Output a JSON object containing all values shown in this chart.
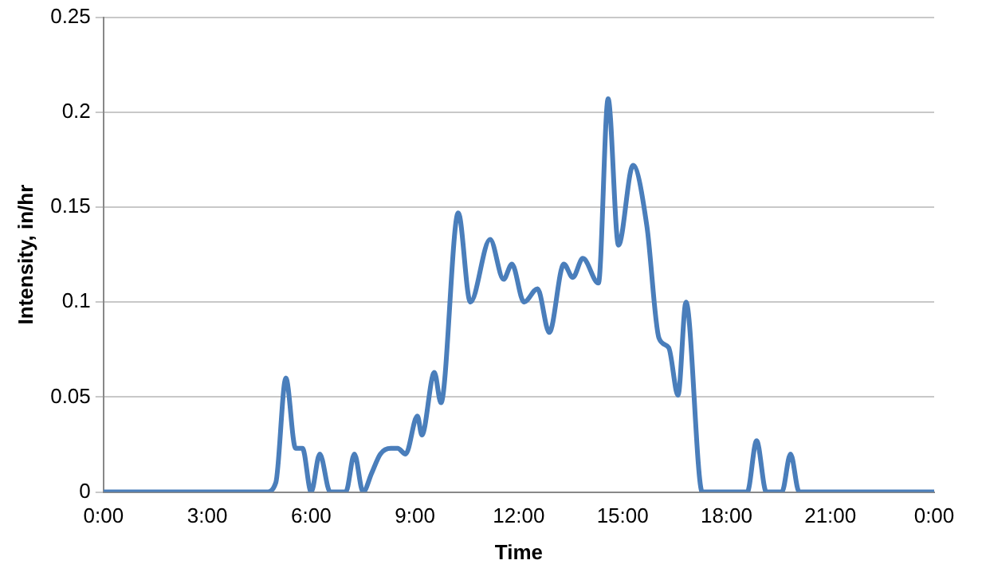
{
  "chart_data": {
    "type": "line",
    "xlabel": "Time",
    "ylabel": "Intensity, in/hr",
    "x": [
      0,
      4.7,
      4.98,
      5.27,
      5.55,
      5.75,
      6.0,
      6.25,
      6.55,
      7.0,
      7.25,
      7.5,
      7.75,
      8.0,
      8.3,
      8.5,
      8.73,
      9.07,
      9.2,
      9.56,
      9.75,
      10.25,
      10.6,
      11.17,
      11.56,
      11.8,
      12.15,
      12.54,
      12.88,
      13.3,
      13.56,
      13.85,
      14.3,
      14.58,
      14.88,
      15.3,
      15.7,
      16.05,
      16.33,
      16.6,
      16.83,
      17.3,
      18.6,
      18.87,
      19.15,
      19.6,
      19.85,
      20.1,
      24
    ],
    "series": [
      {
        "color": "#4a7ebb",
        "values": [
          0,
          0,
          0.005,
          0.06,
          0.023,
          0.023,
          0,
          0.02,
          0,
          0,
          0.02,
          0,
          0.01,
          0.02,
          0.023,
          0.023,
          0.02,
          0.04,
          0.03,
          0.063,
          0.047,
          0.147,
          0.1,
          0.133,
          0.112,
          0.12,
          0.1,
          0.107,
          0.084,
          0.12,
          0.113,
          0.123,
          0.11,
          0.207,
          0.13,
          0.172,
          0.14,
          0.081,
          0.076,
          0.051,
          0.1,
          0,
          0,
          0.027,
          0,
          0,
          0.02,
          0,
          0
        ]
      }
    ],
    "xlim": [
      0,
      24
    ],
    "xticks": [
      {
        "value": 0,
        "label": "0:00"
      },
      {
        "value": 3,
        "label": "3:00"
      },
      {
        "value": 6,
        "label": "6:00"
      },
      {
        "value": 9,
        "label": "9:00"
      },
      {
        "value": 12,
        "label": "12:00"
      },
      {
        "value": 15,
        "label": "15:00"
      },
      {
        "value": 18,
        "label": "18:00"
      },
      {
        "value": 21,
        "label": "21:00"
      },
      {
        "value": 24,
        "label": "0:00"
      }
    ],
    "ylim": [
      0,
      0.25
    ],
    "yticks": [
      0,
      0.05,
      0.1,
      0.15,
      0.2,
      0.25
    ],
    "grid": "y",
    "legend": false,
    "marker": "none",
    "line_style": "solid"
  }
}
